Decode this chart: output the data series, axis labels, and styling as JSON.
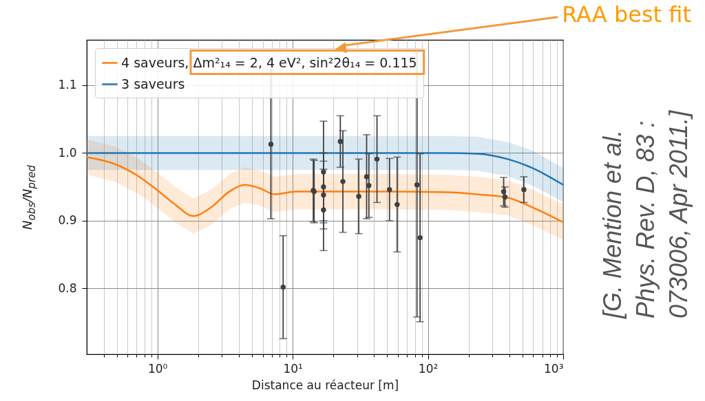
{
  "chart_data": {
    "type": "line",
    "xlabel": "Distance au réacteur [m]",
    "ylabel": "N$_{obs}$/N$_{pred}$",
    "log": "x",
    "xlim": [
      0.3,
      1000
    ],
    "ylim": [
      0.703,
      1.167
    ],
    "xticks": [
      {
        "value": 0.4,
        "label": null
      },
      {
        "value": 0.5,
        "label": null
      },
      {
        "value": 0.6,
        "label": null
      },
      {
        "value": 0.7,
        "label": null
      },
      {
        "value": 0.8,
        "label": null
      },
      {
        "value": 0.9,
        "label": null
      },
      {
        "value": 1,
        "label": "10⁰"
      },
      {
        "value": 2,
        "label": null
      },
      {
        "value": 3,
        "label": null
      },
      {
        "value": 4,
        "label": null
      },
      {
        "value": 5,
        "label": null
      },
      {
        "value": 6,
        "label": null
      },
      {
        "value": 7,
        "label": null
      },
      {
        "value": 8,
        "label": null
      },
      {
        "value": 9,
        "label": null
      },
      {
        "value": 10,
        "label": "10¹"
      },
      {
        "value": 20,
        "label": null
      },
      {
        "value": 30,
        "label": null
      },
      {
        "value": 40,
        "label": null
      },
      {
        "value": 50,
        "label": null
      },
      {
        "value": 60,
        "label": null
      },
      {
        "value": 70,
        "label": null
      },
      {
        "value": 80,
        "label": null
      },
      {
        "value": 90,
        "label": null
      },
      {
        "value": 100,
        "label": "10²"
      },
      {
        "value": 200,
        "label": null
      },
      {
        "value": 300,
        "label": null
      },
      {
        "value": 400,
        "label": null
      },
      {
        "value": 500,
        "label": null
      },
      {
        "value": 600,
        "label": null
      },
      {
        "value": 700,
        "label": null
      },
      {
        "value": 800,
        "label": null
      },
      {
        "value": 900,
        "label": null
      },
      {
        "value": 1000,
        "label": "10³"
      }
    ],
    "yticks": [
      0.8,
      0.9,
      {
        "value": 1,
        "label": "1.0"
      },
      1.1
    ],
    "grid": true,
    "legend": "top left",
    "annotations": [
      "RAA best fit",
      "[G. Mention et al. Phys. Rev. D, 83 : 073006, Apr 2011.]"
    ],
    "series": [
      {
        "name": "4 saveurs, Δm²₁₄ = 2, 4 eV², sin²2θ₁₄ = 0.115",
        "color": "#ff7f0e",
        "x": [
          0.3,
          0.48,
          0.72,
          1,
          1.35,
          1.84,
          2.5,
          3.4,
          4.4,
          5.7,
          7.4,
          10.6,
          20,
          50,
          139,
          232,
          390,
          590,
          1000
        ],
        "values": [
          0.994,
          0.984,
          0.966,
          0.945,
          0.924,
          0.907,
          0.92,
          0.943,
          0.953,
          0.948,
          0.939,
          0.943,
          0.943,
          0.943,
          0.942,
          0.939,
          0.934,
          0.92,
          0.898
        ],
        "lower": [
          0.968,
          0.958,
          0.94,
          0.919,
          0.898,
          0.881,
          0.894,
          0.917,
          0.927,
          0.922,
          0.913,
          0.917,
          0.917,
          0.917,
          0.916,
          0.913,
          0.908,
          0.894,
          0.872
        ],
        "upper": [
          1.02,
          1.01,
          0.992,
          0.971,
          0.95,
          0.933,
          0.946,
          0.969,
          0.979,
          0.974,
          0.965,
          0.969,
          0.969,
          0.969,
          0.968,
          0.965,
          0.96,
          0.946,
          0.924
        ]
      },
      {
        "name": "3 saveurs",
        "color": "#1f77b4",
        "x": [
          0.3,
          1,
          10,
          100,
          139,
          232,
          390,
          590,
          1000
        ],
        "values": [
          1,
          1,
          1,
          1,
          1,
          0.999,
          0.991,
          0.978,
          0.953
        ],
        "lower": [
          0.975,
          0.975,
          0.975,
          0.975,
          0.975,
          0.974,
          0.966,
          0.952,
          0.928
        ],
        "upper": [
          1.025,
          1.025,
          1.025,
          1.025,
          1.025,
          1.024,
          1.016,
          1.004,
          0.978
        ]
      },
      {
        "type": "scatter",
        "color": "#404040",
        "marker": "circle",
        "x": [
          6.9,
          8.5,
          14.2,
          14.4,
          16.9,
          16.9,
          16.9,
          16.9,
          22.5,
          23.5,
          30.8,
          35.2,
          36.6,
          42,
          52,
          59.2,
          83,
          87.5,
          363,
          371,
          512
        ],
        "values": [
          1.013,
          0.802,
          0.945,
          0.943,
          0.972,
          0.95,
          0.938,
          0.916,
          1.017,
          0.958,
          0.936,
          0.965,
          0.952,
          0.991,
          0.946,
          0.924,
          0.953,
          0.875,
          0.943,
          0.935,
          0.946
        ],
        "errors": [
          0.11,
          0.076,
          0.046,
          0.046,
          0.075,
          0.05,
          0.05,
          0.06,
          0.038,
          0.075,
          0.055,
          0.062,
          0.047,
          0.064,
          0.046,
          0.07,
          0.195,
          0.124,
          0.021,
          0.015,
          0.019
        ]
      }
    ]
  }
}
